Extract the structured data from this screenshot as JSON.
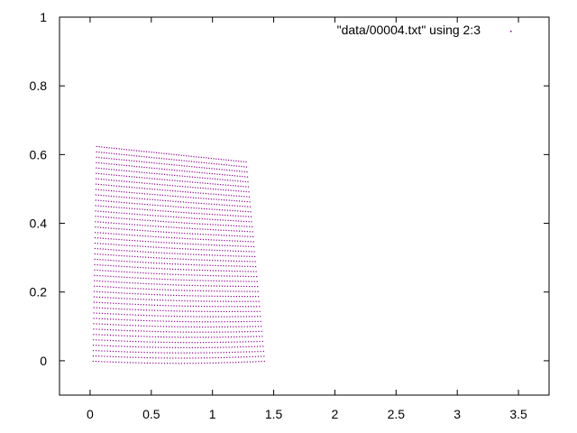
{
  "chart_data": {
    "type": "scatter",
    "title": "",
    "xlabel": "",
    "ylabel": "",
    "xlim": [
      -0.25,
      3.75
    ],
    "ylim": [
      -0.1,
      1.0
    ],
    "xticks": [
      0,
      0.5,
      1,
      1.5,
      2,
      2.5,
      3,
      3.5
    ],
    "xtick_labels": [
      "0",
      "0.5",
      "1",
      "1.5",
      "2",
      "2.5",
      "3",
      "3.5"
    ],
    "yticks": [
      0,
      0.2,
      0.4,
      0.6,
      0.8,
      1
    ],
    "ytick_labels": [
      "0",
      "0.2",
      "0.4",
      "0.6",
      "0.8",
      "1"
    ],
    "grid": false,
    "legend_position": "top-right",
    "series": [
      {
        "name": "\"data/00004.txt\" using 2:3",
        "color": "#8b008b",
        "marker": "dot",
        "description_of_shape": "dense grid of points forming a quadrilateral region",
        "region_corners": {
          "bottom_left": [
            0.02,
            0.0
          ],
          "bottom_right": [
            1.42,
            0.0
          ],
          "top_left": [
            0.05,
            0.625
          ],
          "top_right": [
            1.27,
            0.58
          ]
        },
        "rows": 40,
        "points_per_row": 60
      }
    ]
  }
}
